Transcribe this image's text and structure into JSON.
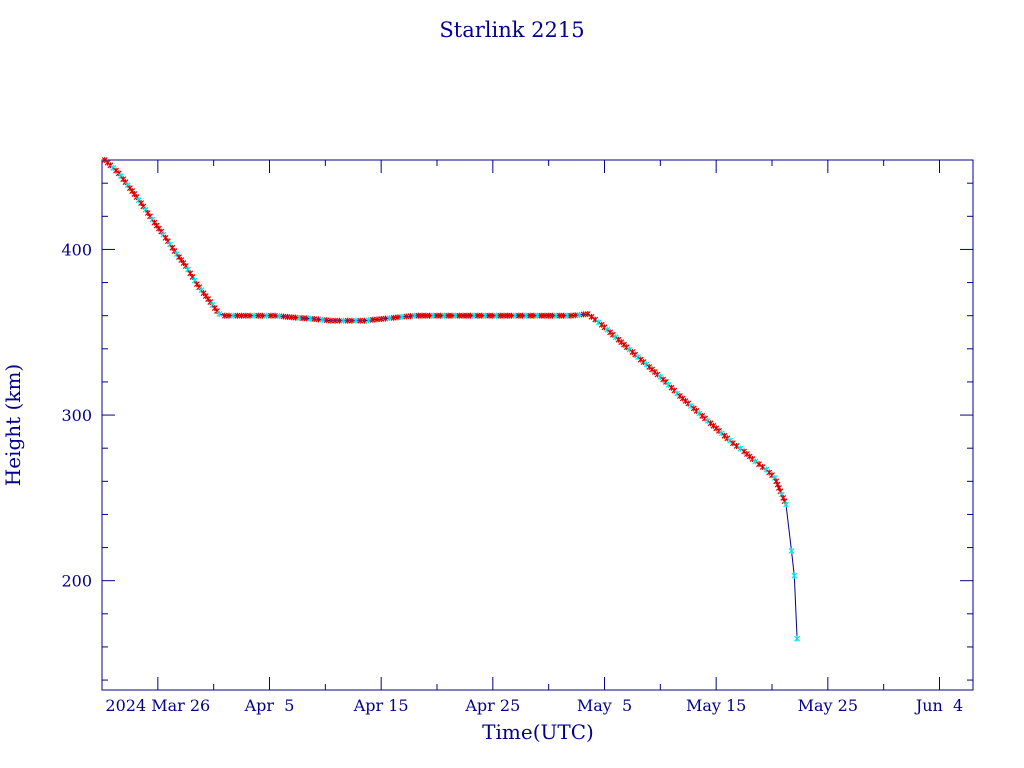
{
  "chart_data": {
    "type": "line",
    "title": "Starlink 2215",
    "xlabel": "Time(UTC)",
    "ylabel": "Height (km)",
    "x_range": [
      "2024-03-21",
      "2024-06-07"
    ],
    "ylim": [
      134,
      454
    ],
    "y_ticks": [
      200,
      300,
      400
    ],
    "x_ticks": [
      {
        "date": "2024-03-26",
        "label": "2024 Mar 26"
      },
      {
        "date": "2024-04-05",
        "label": "Apr  5"
      },
      {
        "date": "2024-04-15",
        "label": "Apr 15"
      },
      {
        "date": "2024-04-25",
        "label": "Apr 25"
      },
      {
        "date": "2024-05-05",
        "label": "May  5"
      },
      {
        "date": "2024-05-15",
        "label": "May 15"
      },
      {
        "date": "2024-05-25",
        "label": "May 25"
      },
      {
        "date": "2024-06-04",
        "label": "Jun  4"
      }
    ],
    "grid": false,
    "colors": {
      "axis": "#00008b",
      "line": "#00008b",
      "marker_red": "#dd0000",
      "marker_cyan": "#00e5ee"
    },
    "series": [
      {
        "color": "#00008b",
        "points": [
          [
            "2024-03-21 06:00",
            454
          ],
          [
            "2024-03-22 12:00",
            446
          ],
          [
            "2024-03-23 12:00",
            437
          ],
          [
            "2024-03-24 12:00",
            428
          ],
          [
            "2024-03-25 12:00",
            418
          ],
          [
            "2024-03-26 12:00",
            409
          ],
          [
            "2024-03-27 12:00",
            399
          ],
          [
            "2024-03-28 12:00",
            390
          ],
          [
            "2024-03-29 12:00",
            379
          ],
          [
            "2024-03-30 12:00",
            370
          ],
          [
            "2024-03-31 12:00",
            361
          ],
          [
            "2024-04-01 00:00",
            360
          ],
          [
            "2024-04-02 12:00",
            360
          ],
          [
            "2024-04-04 00:00",
            360
          ],
          [
            "2024-04-05 12:00",
            360
          ],
          [
            "2024-04-07 00:00",
            359
          ],
          [
            "2024-04-09 00:00",
            358
          ],
          [
            "2024-04-10 12:00",
            357
          ],
          [
            "2024-04-12 00:00",
            357
          ],
          [
            "2024-04-13 12:00",
            357
          ],
          [
            "2024-04-15 00:00",
            358
          ],
          [
            "2024-04-16 12:00",
            359
          ],
          [
            "2024-04-18 00:00",
            360
          ],
          [
            "2024-04-20 00:00",
            360
          ],
          [
            "2024-04-22 00:00",
            360
          ],
          [
            "2024-04-24 00:00",
            360
          ],
          [
            "2024-04-26 00:00",
            360
          ],
          [
            "2024-04-28 00:00",
            360
          ],
          [
            "2024-04-30 00:00",
            360
          ],
          [
            "2024-05-02 00:00",
            360
          ],
          [
            "2024-05-03 12:00",
            361
          ],
          [
            "2024-05-04 12:00",
            356
          ],
          [
            "2024-05-05 12:00",
            350
          ],
          [
            "2024-05-06 12:00",
            344
          ],
          [
            "2024-05-07 12:00",
            338
          ],
          [
            "2024-05-08 12:00",
            332
          ],
          [
            "2024-05-09 12:00",
            326
          ],
          [
            "2024-05-10 12:00",
            320
          ],
          [
            "2024-05-11 12:00",
            313
          ],
          [
            "2024-05-12 12:00",
            307
          ],
          [
            "2024-05-13 12:00",
            301
          ],
          [
            "2024-05-14 12:00",
            295
          ],
          [
            "2024-05-15 12:00",
            289
          ],
          [
            "2024-05-16 12:00",
            283
          ],
          [
            "2024-05-17 12:00",
            278
          ],
          [
            "2024-05-18 12:00",
            272
          ],
          [
            "2024-05-19 12:00",
            267
          ],
          [
            "2024-05-20 06:00",
            262
          ],
          [
            "2024-05-20 18:00",
            254
          ],
          [
            "2024-05-21 06:00",
            246
          ],
          [
            "2024-05-21 18:00",
            218
          ],
          [
            "2024-05-22 00:00",
            203
          ],
          [
            "2024-05-22 06:00",
            165
          ]
        ]
      }
    ]
  }
}
